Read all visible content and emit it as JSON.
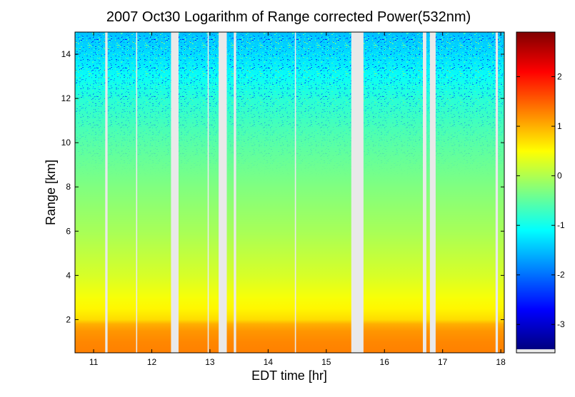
{
  "chart_data": {
    "type": "heatmap",
    "title": "2007 Oct30  Logarithm of Range corrected Power(532nm)",
    "xlabel": "EDT time [hr]",
    "ylabel": "Range [km]",
    "xlim": [
      10.68,
      18.06
    ],
    "ylim": [
      0.5,
      15.0
    ],
    "x_ticks": [
      "11",
      "12",
      "13",
      "14",
      "15",
      "16",
      "17",
      "18"
    ],
    "y_ticks": [
      "2",
      "4",
      "6",
      "8",
      "10",
      "12",
      "14"
    ],
    "colorbar": {
      "colormap": "jet",
      "clim": [
        -3.5,
        2.9
      ],
      "ticks": [
        "2",
        "1",
        "0",
        "-1",
        "-2",
        "-3"
      ]
    },
    "data_gaps_hr": [
      [
        11.2,
        11.24
      ],
      [
        11.73,
        11.75
      ],
      [
        12.33,
        12.46
      ],
      [
        12.96,
        12.98
      ],
      [
        13.15,
        13.29
      ],
      [
        13.41,
        13.45
      ],
      [
        14.46,
        14.48
      ],
      [
        15.43,
        15.64
      ],
      [
        16.66,
        16.72
      ],
      [
        16.78,
        16.88
      ],
      [
        17.91,
        17.95
      ]
    ],
    "vertical_profile": {
      "range_km": [
        0.5,
        1.0,
        1.5,
        1.8,
        2.0,
        2.5,
        3.0,
        4.0,
        6.0,
        8.0,
        10.0,
        11.0,
        12.0,
        13.0,
        14.0,
        15.0
      ],
      "log_power": [
        1.3,
        1.25,
        1.15,
        1.0,
        0.72,
        0.55,
        0.45,
        0.25,
        -0.05,
        -0.3,
        -0.55,
        -0.7,
        -0.85,
        -1.05,
        -1.3,
        -1.5
      ]
    }
  }
}
